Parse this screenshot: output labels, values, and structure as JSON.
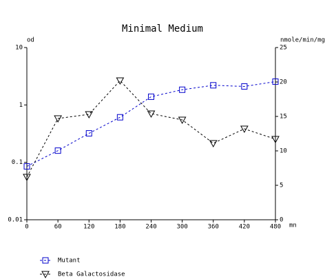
{
  "chart_data": {
    "type": "line",
    "title": "Minimal Medium",
    "y_label": "od",
    "y2_label": "nmole/min/mg",
    "x_label": "mn",
    "x": [
      0,
      60,
      120,
      180,
      240,
      300,
      360,
      420,
      480
    ],
    "xlim": [
      0,
      480
    ],
    "xticks": [
      0,
      60,
      120,
      180,
      240,
      300,
      360,
      420,
      480
    ],
    "ylim": [
      0.01,
      10
    ],
    "yticks": [
      0.01,
      0.1,
      1,
      10
    ],
    "ylog": true,
    "y2lim": [
      0,
      25
    ],
    "y2ticks": [
      0,
      5,
      10,
      15,
      20,
      25
    ],
    "series": [
      {
        "name": "Mutant",
        "color": "#0000cc",
        "marker": "square",
        "axis": "y",
        "values": [
          0.085,
          0.16,
          0.32,
          0.61,
          1.39,
          1.84,
          2.2,
          2.1,
          2.55
        ]
      },
      {
        "name": "Beta Galactosidase",
        "color": "#000000",
        "marker": "triangle-down",
        "axis": "y2",
        "values": [
          6.2,
          14.7,
          15.3,
          20.2,
          15.4,
          14.5,
          11.1,
          13.2,
          11.7
        ]
      }
    ]
  }
}
